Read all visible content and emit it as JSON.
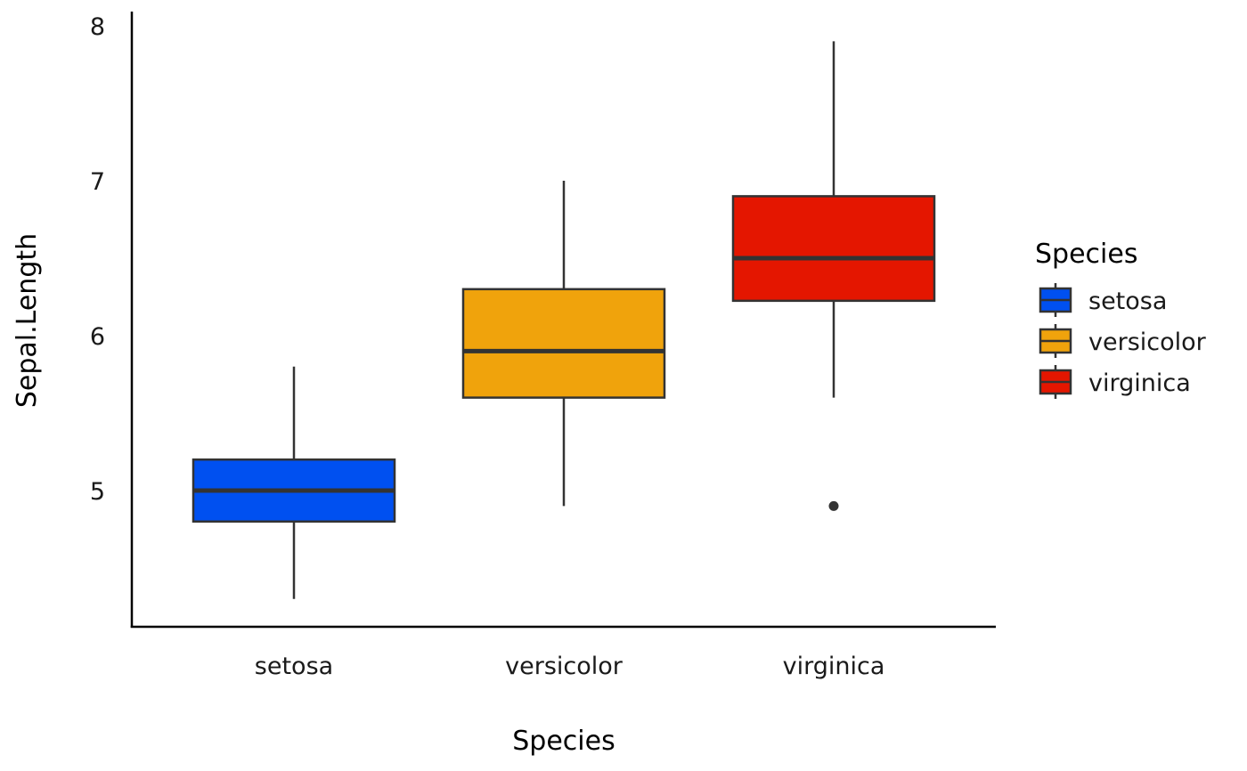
{
  "chart_data": {
    "type": "boxplot",
    "title": "",
    "xlabel": "Species",
    "ylabel": "Sepal.Length",
    "ylim": [
      4.1,
      8.1
    ],
    "yticks": [
      5,
      6,
      7,
      8
    ],
    "ytick_labels": [
      "5",
      "6",
      "7",
      "8"
    ],
    "categories": [
      "setosa",
      "versicolor",
      "virginica"
    ],
    "grid": false,
    "series": [
      {
        "name": "setosa",
        "color": "#0050F0",
        "whisker_low": 4.3,
        "q1": 4.8,
        "median": 5.0,
        "q3": 5.2,
        "whisker_high": 5.8,
        "outliers": []
      },
      {
        "name": "versicolor",
        "color": "#F0A30C",
        "whisker_low": 4.9,
        "q1": 5.6,
        "median": 5.9,
        "q3": 6.3,
        "whisker_high": 7.0,
        "outliers": []
      },
      {
        "name": "virginica",
        "color": "#E41600",
        "whisker_low": 5.6,
        "q1": 6.225,
        "median": 6.5,
        "q3": 6.9,
        "whisker_high": 7.9,
        "outliers": [
          4.9
        ]
      }
    ],
    "outline_color": "#333333",
    "legend": {
      "title": "Species",
      "placement": "right",
      "entries": [
        "setosa",
        "versicolor",
        "virginica"
      ]
    }
  }
}
